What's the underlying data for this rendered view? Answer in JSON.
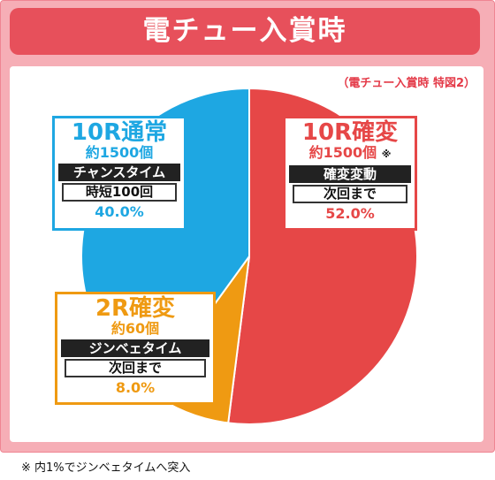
{
  "title": "電チュー入賞時",
  "subtitle": "（電チュー入賞時 特図2）",
  "note": "※ 内1%でジンベェタイムへ突入",
  "colors": {
    "red": "#e64747",
    "blue": "#1ea7e2",
    "orange": "#ef9a12",
    "frame_pink": "#f6aeb6",
    "title_red": "#e7505b"
  },
  "chart_data": {
    "type": "pie",
    "slices": [
      {
        "label": "10R確変",
        "count": "約1500個",
        "mark": "※",
        "mode": "確変変動",
        "detail": "次回まで",
        "value": 52.0,
        "pct_label": "52.0%",
        "color": "#e64747"
      },
      {
        "label": "2R確変",
        "count": "約60個",
        "mode": "ジンベェタイム",
        "detail": "次回まで",
        "value": 8.0,
        "pct_label": "8.0%",
        "color": "#ef9a12"
      },
      {
        "label": "10R通常",
        "count": "約1500個",
        "mode": "チャンスタイム",
        "detail": "時短100回",
        "value": 40.0,
        "pct_label": "40.0%",
        "color": "#1ea7e2"
      }
    ]
  }
}
